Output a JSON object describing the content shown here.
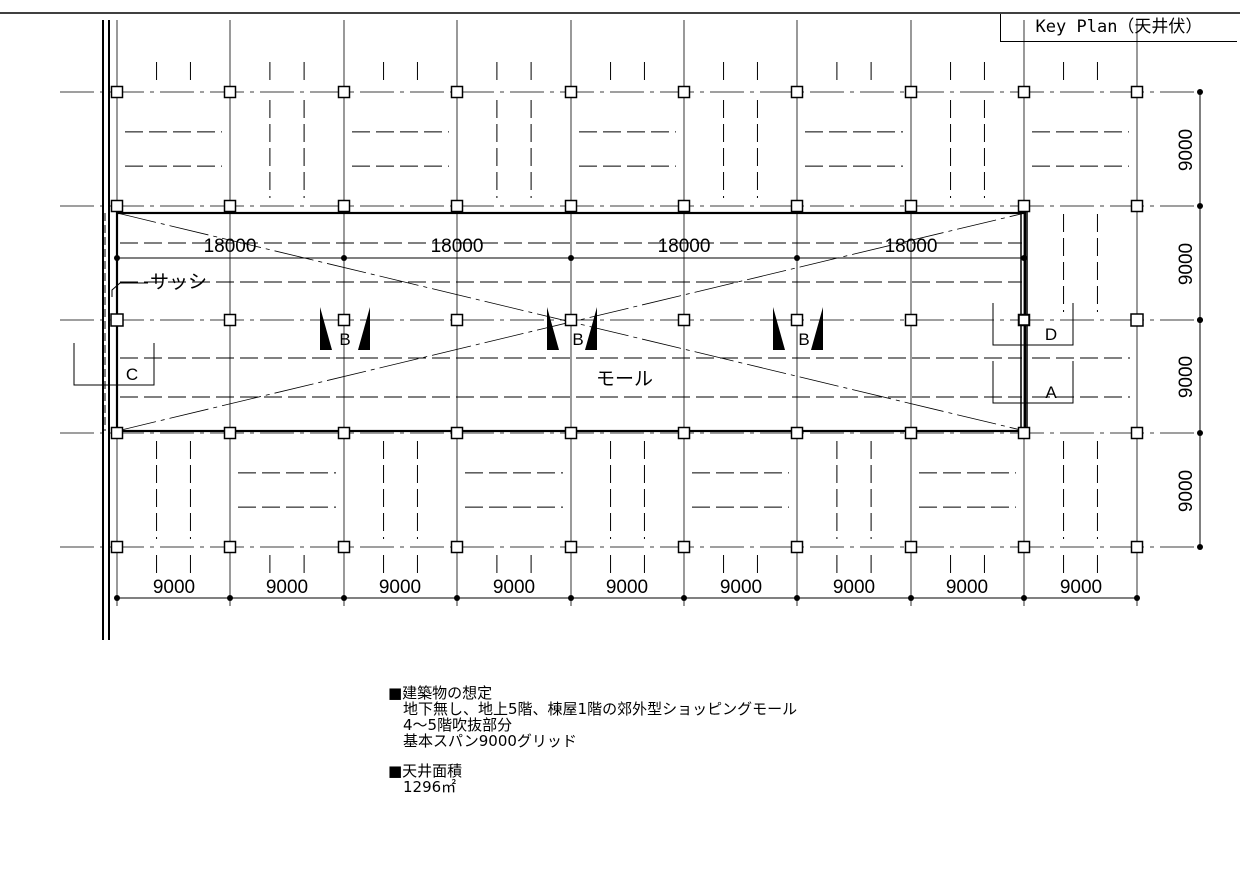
{
  "title": "Key Plan（天井伏）",
  "dims": {
    "bottom": [
      "9000",
      "9000",
      "9000",
      "9000",
      "9000",
      "9000",
      "9000",
      "9000",
      "9000"
    ],
    "right": [
      "9000",
      "9000",
      "9000",
      "9000"
    ],
    "mall": [
      "18000",
      "18000",
      "18000",
      "18000"
    ]
  },
  "labels": {
    "sash": "サッシ",
    "mall": "モール",
    "section_a": "A",
    "section_b": "B",
    "section_c": "C",
    "section_d": "D"
  },
  "notes": {
    "building_heading": "■建築物の想定",
    "building_lines": [
      "地下無し、地上5階、棟屋1階の郊外型ショッピングモール",
      "4～5階吹抜部分",
      "基本スパン9000グリッド"
    ],
    "area_heading": "■天井面積",
    "area_value": "1296㎡"
  }
}
